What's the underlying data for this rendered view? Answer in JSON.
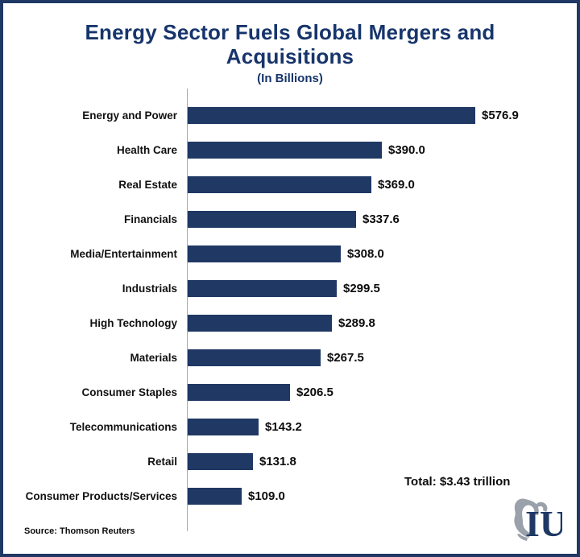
{
  "chart_data": {
    "type": "bar",
    "orientation": "horizontal",
    "title": "Energy Sector Fuels Global Mergers and Acquisitions",
    "subtitle": "(In Billions)",
    "categories": [
      "Energy and Power",
      "Health Care",
      "Real Estate",
      "Financials",
      "Media/Entertainment",
      "Industrials",
      "High Technology",
      "Materials",
      "Consumer Staples",
      "Telecommunications",
      "Retail",
      "Consumer Products/Services"
    ],
    "values": [
      576.9,
      390.0,
      369.0,
      337.6,
      308.0,
      299.5,
      289.8,
      267.5,
      206.5,
      143.2,
      131.8,
      109.0
    ],
    "value_labels": [
      "$576.9",
      "$390.0",
      "$369.0",
      "$337.6",
      "$308.0",
      "$299.5",
      "$289.8",
      "$267.5",
      "$206.5",
      "$143.2",
      "$131.8",
      "$109.0"
    ],
    "xlim": [
      0,
      600
    ],
    "grid": false,
    "legend": false,
    "annotation": "Total: $3.43 trillion",
    "source": "Source: Thomson Reuters"
  },
  "colors": {
    "bar": "#1f3864",
    "title": "#17356b",
    "border": "#1f3864",
    "axis": "#a8a8a8",
    "logo_navy": "#1f3864",
    "logo_gray": "#9aa1aa"
  },
  "logo": {
    "text": "IU"
  }
}
